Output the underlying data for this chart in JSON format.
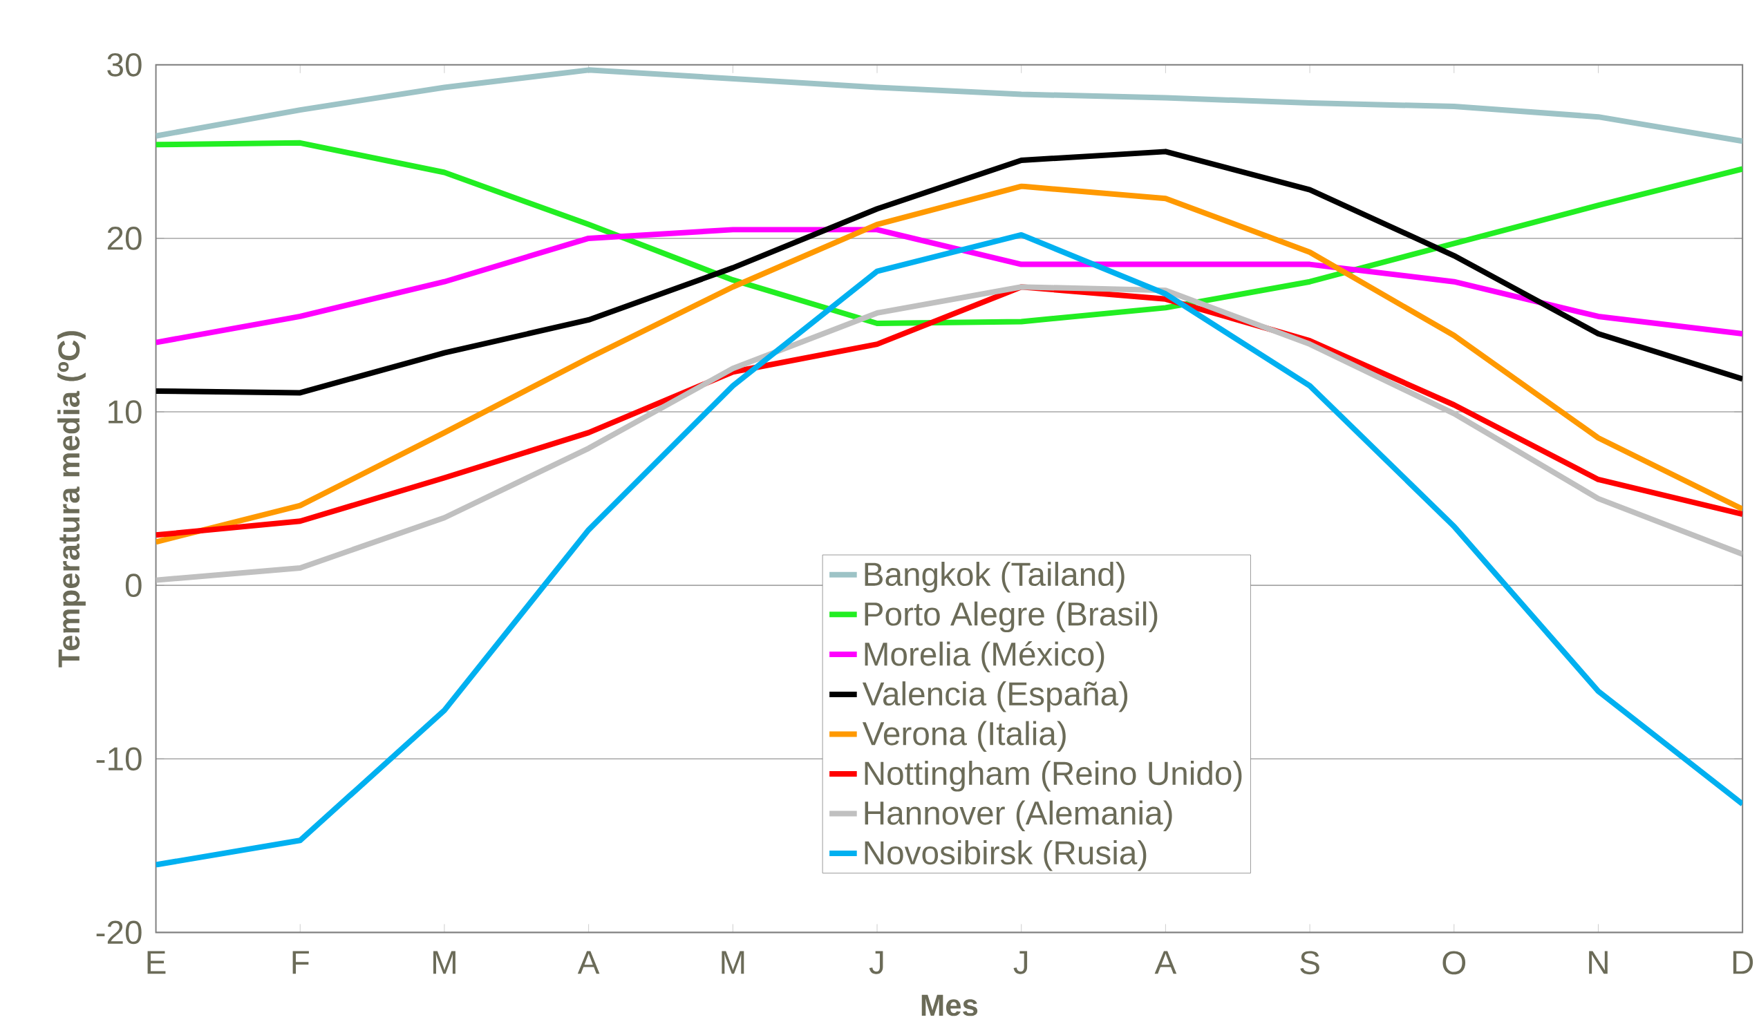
{
  "chart_data": {
    "type": "line",
    "xlabel": "Mes",
    "ylabel": "Temperatura media (ºC)",
    "categories": [
      "E",
      "F",
      "M",
      "A",
      "M",
      "J",
      "J",
      "A",
      "S",
      "O",
      "N",
      "D"
    ],
    "ylim": [
      -20,
      30
    ],
    "yticks": [
      -20,
      -10,
      0,
      10,
      20,
      30
    ],
    "grid": "y",
    "legend": "bottom",
    "marker": "none",
    "line_style": "solid",
    "series": [
      {
        "name": "Bangkok (Tailand)",
        "color": "#9dc3c6",
        "values": [
          25.9,
          27.4,
          28.7,
          29.7,
          29.2,
          28.7,
          28.3,
          28.1,
          27.8,
          27.6,
          27.0,
          25.6
        ]
      },
      {
        "name": "Porto Alegre (Brasil)",
        "color": "#22ee22",
        "values": [
          25.4,
          25.5,
          23.8,
          20.8,
          17.6,
          15.1,
          15.2,
          16.0,
          17.5,
          19.7,
          21.9,
          24.0
        ]
      },
      {
        "name": "Morelia (México)",
        "color": "#ff00ff",
        "values": [
          14.0,
          15.5,
          17.5,
          20.0,
          20.5,
          20.5,
          18.5,
          18.5,
          18.5,
          17.5,
          15.5,
          14.5
        ]
      },
      {
        "name": "Valencia (España)",
        "color": "#000000",
        "values": [
          11.2,
          11.1,
          13.4,
          15.3,
          18.3,
          21.7,
          24.5,
          25.0,
          22.8,
          19.0,
          14.5,
          11.9
        ]
      },
      {
        "name": "Verona (Italia)",
        "color": "#ff9900",
        "values": [
          2.5,
          4.6,
          8.8,
          13.1,
          17.2,
          20.8,
          23.0,
          22.3,
          19.2,
          14.4,
          8.5,
          4.4
        ]
      },
      {
        "name": "Nottingham (Reino Unido)",
        "color": "#ff0000",
        "values": [
          2.9,
          3.7,
          6.2,
          8.8,
          12.3,
          13.9,
          17.2,
          16.5,
          14.1,
          10.4,
          6.1,
          4.1
        ]
      },
      {
        "name": "Hannover (Alemania)",
        "color": "#c0c0c0",
        "values": [
          0.3,
          1.0,
          3.9,
          7.9,
          12.5,
          15.7,
          17.2,
          17.0,
          13.9,
          9.9,
          5.0,
          1.8
        ]
      },
      {
        "name": "Novosibirsk (Rusia)",
        "color": "#00b0f0",
        "values": [
          -16.1,
          -14.7,
          -7.2,
          3.2,
          11.5,
          18.1,
          20.2,
          16.8,
          11.5,
          3.4,
          -6.1,
          -12.6
        ]
      }
    ]
  }
}
